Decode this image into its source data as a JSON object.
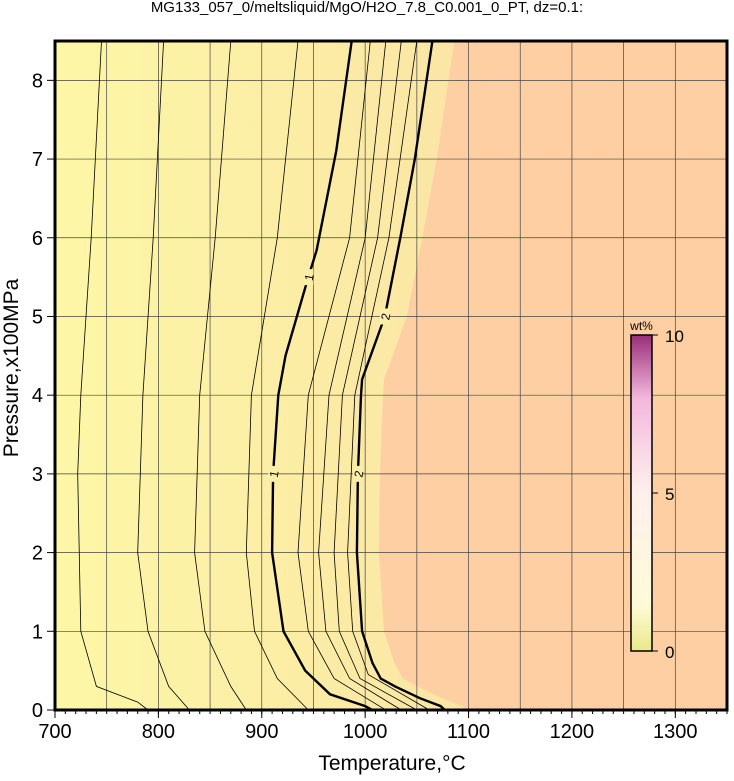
{
  "chart_data": {
    "type": "contour",
    "title": "MG133_057_0/meltsliquid/MgO/H2O_7.8_C0.001_0_PT, dz=0.1:",
    "xlabel": "Temperature,°C",
    "ylabel": "Pressure,x100MPa",
    "xlim": [
      700,
      1350
    ],
    "xticks": [
      700,
      800,
      900,
      1000,
      1100,
      1200,
      1300
    ],
    "ylim": [
      0,
      8.5
    ],
    "yticks": [
      0,
      1,
      2,
      3,
      4,
      5,
      6,
      7,
      8
    ],
    "grid": true,
    "colorbar": {
      "label": "wt%",
      "clim": [
        0,
        10
      ],
      "ticks": [
        0,
        5,
        10
      ]
    },
    "contours": [
      {
        "level": 0.2,
        "x": [
          745,
          735,
          725,
          722,
          725,
          740,
          780,
          790
        ],
        "y": [
          8.5,
          6,
          4,
          3,
          1,
          0.3,
          0.1,
          0
        ]
      },
      {
        "level": 0.4,
        "x": [
          805,
          795,
          785,
          780,
          790,
          810,
          830
        ],
        "y": [
          8.5,
          6,
          4,
          2,
          1,
          0.3,
          0
        ]
      },
      {
        "level": 0.6,
        "x": [
          870,
          855,
          840,
          835,
          845,
          870,
          885
        ],
        "y": [
          8.5,
          6,
          4,
          2,
          1,
          0.3,
          0
        ]
      },
      {
        "level": 0.8,
        "x": [
          935,
          915,
          890,
          885,
          893,
          915,
          945
        ],
        "y": [
          8.5,
          6,
          4,
          2,
          1,
          0.4,
          0
        ]
      },
      {
        "level": 1,
        "bold": true,
        "x": [
          987,
          972,
          953,
          945,
          923,
          916,
          911,
          910,
          921,
          942,
          966,
          1000,
          1007
        ],
        "y": [
          8.5,
          7.1,
          5.84,
          5.5,
          4.5,
          4,
          3,
          2,
          1,
          0.5,
          0.2,
          0.05,
          0
        ]
      },
      {
        "level": 1.2,
        "x": [
          1005,
          985,
          945,
          935,
          945,
          970,
          1020
        ],
        "y": [
          8.5,
          6,
          4,
          2,
          1,
          0.4,
          0
        ]
      },
      {
        "level": 1.4,
        "x": [
          1020,
          1000,
          965,
          955,
          962,
          985,
          1035
        ],
        "y": [
          8.5,
          6,
          4,
          2,
          1,
          0.4,
          0
        ]
      },
      {
        "level": 1.6,
        "x": [
          1035,
          1012,
          978,
          970,
          975,
          995,
          1050
        ],
        "y": [
          8.5,
          6,
          4,
          2,
          1,
          0.4,
          0
        ]
      },
      {
        "level": 1.8,
        "x": [
          1050,
          1023,
          990,
          983,
          988,
          1003,
          1062
        ],
        "y": [
          8.5,
          6,
          4,
          2,
          1,
          0.45,
          0
        ]
      },
      {
        "level": 2,
        "bold": true,
        "x": [
          1065,
          1048,
          1034,
          1019,
          997,
          996,
          993,
          992,
          997,
          1007,
          1015,
          1029,
          1053,
          1073,
          1077
        ],
        "y": [
          8.5,
          7,
          6,
          5,
          4.2,
          4,
          3,
          2,
          1,
          0.6,
          0.4,
          0.3,
          0.15,
          0.05,
          0
        ]
      }
    ]
  }
}
